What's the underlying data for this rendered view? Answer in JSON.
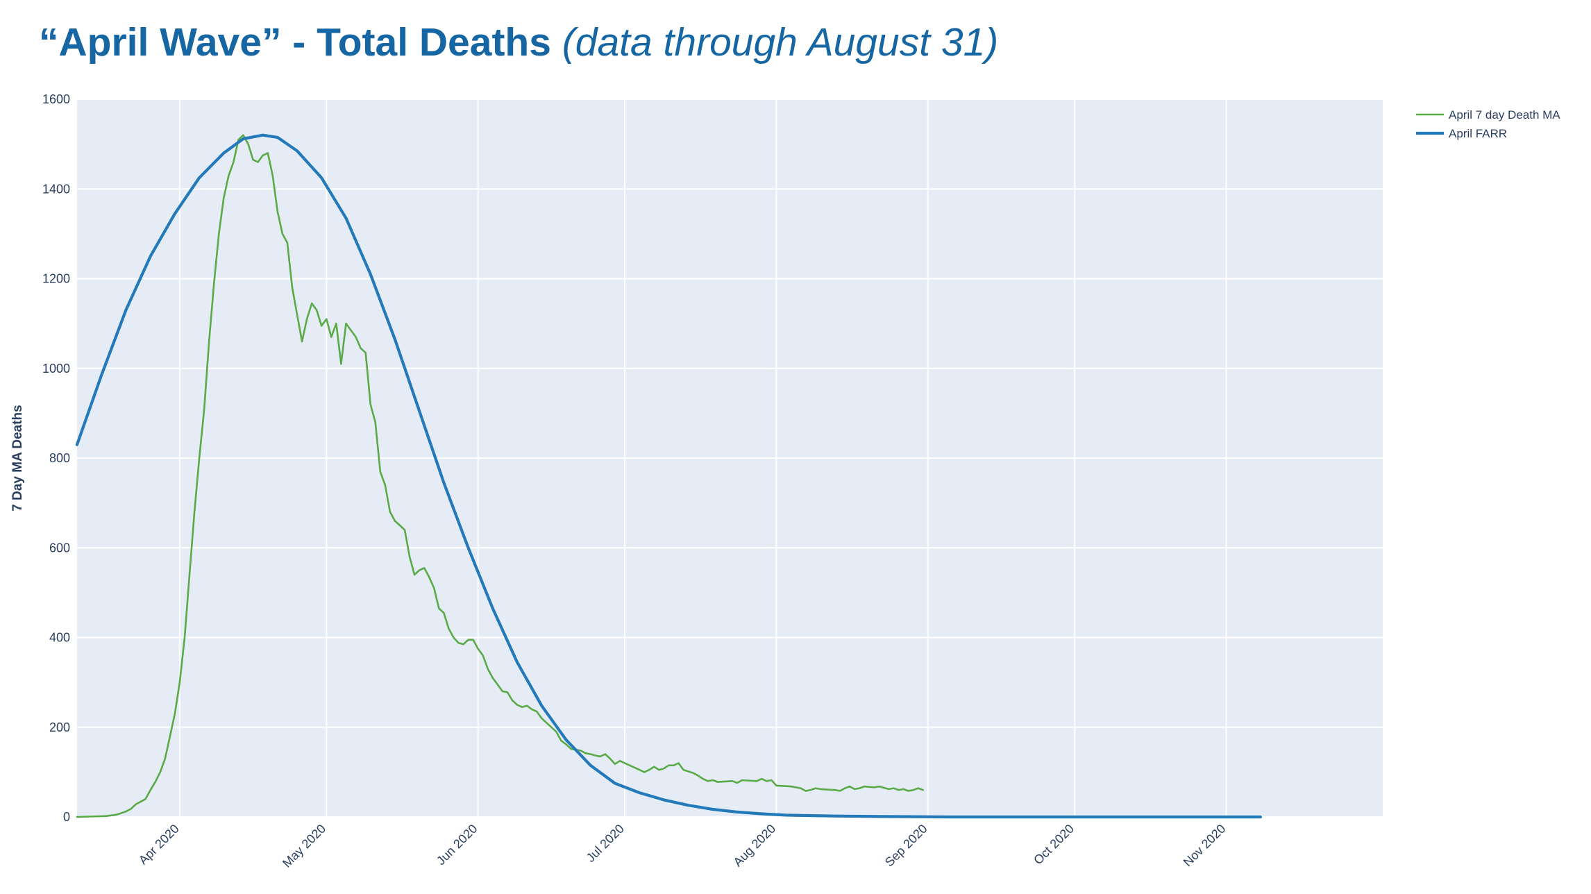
{
  "title": {
    "main": "“April Wave” - Total Deaths",
    "sub": "(data through August 31)"
  },
  "colors": {
    "background": "#ffffff",
    "plot_background": "#e5ecf6",
    "grid": "#ffffff",
    "title": "#1566a3",
    "ma_line": "#5aaa48",
    "farr_line": "#2479b9",
    "text": "#2a3f5f"
  },
  "chart_data": {
    "type": "line",
    "title": "“April Wave” - Total Deaths (data through August 31)",
    "xlabel": "",
    "ylabel": "7 Day MA Deaths",
    "xlim": [
      "2020-03-11",
      "2020-12-03"
    ],
    "ylim": [
      0,
      1600
    ],
    "y_ticks": [
      0,
      200,
      400,
      600,
      800,
      1000,
      1200,
      1400,
      1600
    ],
    "x_ticks": [
      {
        "date": "2020-04-01",
        "label": "Apr 2020"
      },
      {
        "date": "2020-05-01",
        "label": "May 2020"
      },
      {
        "date": "2020-06-01",
        "label": "Jun 2020"
      },
      {
        "date": "2020-07-01",
        "label": "Jul 2020"
      },
      {
        "date": "2020-08-01",
        "label": "Aug 2020"
      },
      {
        "date": "2020-09-01",
        "label": "Sep 2020"
      },
      {
        "date": "2020-10-01",
        "label": "Oct 2020"
      },
      {
        "date": "2020-11-01",
        "label": "Nov 2020"
      }
    ],
    "grid": true,
    "legend_position": "top-right",
    "series": [
      {
        "name": "April 7 day Death MA",
        "color": "#5aaa48",
        "points": [
          [
            "2020-03-11",
            0
          ],
          [
            "2020-03-17",
            2
          ],
          [
            "2020-03-19",
            5
          ],
          [
            "2020-03-21",
            12
          ],
          [
            "2020-03-22",
            18
          ],
          [
            "2020-03-23",
            28
          ],
          [
            "2020-03-25",
            40
          ],
          [
            "2020-03-26",
            60
          ],
          [
            "2020-03-27",
            78
          ],
          [
            "2020-03-28",
            100
          ],
          [
            "2020-03-29",
            130
          ],
          [
            "2020-03-30",
            180
          ],
          [
            "2020-03-31",
            230
          ],
          [
            "2020-04-01",
            300
          ],
          [
            "2020-04-02",
            400
          ],
          [
            "2020-04-03",
            540
          ],
          [
            "2020-04-04",
            680
          ],
          [
            "2020-04-05",
            800
          ],
          [
            "2020-04-06",
            910
          ],
          [
            "2020-04-07",
            1060
          ],
          [
            "2020-04-08",
            1190
          ],
          [
            "2020-04-09",
            1300
          ],
          [
            "2020-04-10",
            1380
          ],
          [
            "2020-04-11",
            1430
          ],
          [
            "2020-04-12",
            1460
          ],
          [
            "2020-04-13",
            1510
          ],
          [
            "2020-04-14",
            1520
          ],
          [
            "2020-04-15",
            1500
          ],
          [
            "2020-04-16",
            1465
          ],
          [
            "2020-04-17",
            1460
          ],
          [
            "2020-04-18",
            1475
          ],
          [
            "2020-04-19",
            1480
          ],
          [
            "2020-04-20",
            1430
          ],
          [
            "2020-04-21",
            1350
          ],
          [
            "2020-04-22",
            1300
          ],
          [
            "2020-04-23",
            1280
          ],
          [
            "2020-04-24",
            1180
          ],
          [
            "2020-04-25",
            1120
          ],
          [
            "2020-04-26",
            1060
          ],
          [
            "2020-04-27",
            1110
          ],
          [
            "2020-04-28",
            1145
          ],
          [
            "2020-04-29",
            1130
          ],
          [
            "2020-04-30",
            1095
          ],
          [
            "2020-05-01",
            1110
          ],
          [
            "2020-05-02",
            1070
          ],
          [
            "2020-05-03",
            1100
          ],
          [
            "2020-05-04",
            1010
          ],
          [
            "2020-05-05",
            1100
          ],
          [
            "2020-05-06",
            1085
          ],
          [
            "2020-05-07",
            1070
          ],
          [
            "2020-05-08",
            1045
          ],
          [
            "2020-05-09",
            1035
          ],
          [
            "2020-05-10",
            920
          ],
          [
            "2020-05-11",
            880
          ],
          [
            "2020-05-12",
            770
          ],
          [
            "2020-05-13",
            740
          ],
          [
            "2020-05-14",
            680
          ],
          [
            "2020-05-15",
            660
          ],
          [
            "2020-05-16",
            650
          ],
          [
            "2020-05-17",
            640
          ],
          [
            "2020-05-18",
            580
          ],
          [
            "2020-05-19",
            540
          ],
          [
            "2020-05-20",
            550
          ],
          [
            "2020-05-21",
            555
          ],
          [
            "2020-05-22",
            535
          ],
          [
            "2020-05-23",
            510
          ],
          [
            "2020-05-24",
            465
          ],
          [
            "2020-05-25",
            455
          ],
          [
            "2020-05-26",
            420
          ],
          [
            "2020-05-27",
            400
          ],
          [
            "2020-05-28",
            388
          ],
          [
            "2020-05-29",
            385
          ],
          [
            "2020-05-30",
            395
          ],
          [
            "2020-05-31",
            395
          ],
          [
            "2020-06-01",
            375
          ],
          [
            "2020-06-02",
            360
          ],
          [
            "2020-06-03",
            330
          ],
          [
            "2020-06-04",
            310
          ],
          [
            "2020-06-05",
            295
          ],
          [
            "2020-06-06",
            280
          ],
          [
            "2020-06-07",
            278
          ],
          [
            "2020-06-08",
            260
          ],
          [
            "2020-06-09",
            250
          ],
          [
            "2020-06-10",
            245
          ],
          [
            "2020-06-11",
            248
          ],
          [
            "2020-06-12",
            240
          ],
          [
            "2020-06-13",
            235
          ],
          [
            "2020-06-14",
            220
          ],
          [
            "2020-06-15",
            210
          ],
          [
            "2020-06-16",
            200
          ],
          [
            "2020-06-17",
            190
          ],
          [
            "2020-06-18",
            170
          ],
          [
            "2020-06-19",
            162
          ],
          [
            "2020-06-20",
            152
          ],
          [
            "2020-06-21",
            150
          ],
          [
            "2020-06-22",
            148
          ],
          [
            "2020-06-23",
            142
          ],
          [
            "2020-06-24",
            140
          ],
          [
            "2020-06-25",
            137
          ],
          [
            "2020-06-26",
            135
          ],
          [
            "2020-06-27",
            140
          ],
          [
            "2020-06-28",
            130
          ],
          [
            "2020-06-29",
            118
          ],
          [
            "2020-06-30",
            125
          ],
          [
            "2020-07-02",
            115
          ],
          [
            "2020-07-04",
            105
          ],
          [
            "2020-07-05",
            100
          ],
          [
            "2020-07-06",
            105
          ],
          [
            "2020-07-07",
            112
          ],
          [
            "2020-07-08",
            105
          ],
          [
            "2020-07-09",
            108
          ],
          [
            "2020-07-10",
            115
          ],
          [
            "2020-07-11",
            115
          ],
          [
            "2020-07-12",
            120
          ],
          [
            "2020-07-13",
            105
          ],
          [
            "2020-07-15",
            98
          ],
          [
            "2020-07-16",
            92
          ],
          [
            "2020-07-17",
            85
          ],
          [
            "2020-07-18",
            80
          ],
          [
            "2020-07-19",
            82
          ],
          [
            "2020-07-20",
            78
          ],
          [
            "2020-07-23",
            80
          ],
          [
            "2020-07-24",
            76
          ],
          [
            "2020-07-25",
            82
          ],
          [
            "2020-07-28",
            80
          ],
          [
            "2020-07-29",
            85
          ],
          [
            "2020-07-30",
            80
          ],
          [
            "2020-07-31",
            82
          ],
          [
            "2020-08-01",
            70
          ],
          [
            "2020-08-04",
            68
          ],
          [
            "2020-08-06",
            64
          ],
          [
            "2020-08-07",
            58
          ],
          [
            "2020-08-08",
            60
          ],
          [
            "2020-08-09",
            64
          ],
          [
            "2020-08-10",
            62
          ],
          [
            "2020-08-13",
            60
          ],
          [
            "2020-08-14",
            58
          ],
          [
            "2020-08-15",
            64
          ],
          [
            "2020-08-16",
            68
          ],
          [
            "2020-08-17",
            62
          ],
          [
            "2020-08-18",
            64
          ],
          [
            "2020-08-19",
            68
          ],
          [
            "2020-08-21",
            66
          ],
          [
            "2020-08-22",
            68
          ],
          [
            "2020-08-23",
            65
          ],
          [
            "2020-08-24",
            62
          ],
          [
            "2020-08-25",
            64
          ],
          [
            "2020-08-26",
            60
          ],
          [
            "2020-08-27",
            62
          ],
          [
            "2020-08-28",
            58
          ],
          [
            "2020-08-29",
            60
          ],
          [
            "2020-08-30",
            64
          ],
          [
            "2020-08-31",
            60
          ]
        ]
      },
      {
        "name": "April FARR",
        "color": "#2479b9",
        "points": [
          [
            "2020-03-11",
            830
          ],
          [
            "2020-03-16",
            985
          ],
          [
            "2020-03-21",
            1130
          ],
          [
            "2020-03-26",
            1250
          ],
          [
            "2020-03-31",
            1345
          ],
          [
            "2020-04-05",
            1425
          ],
          [
            "2020-04-10",
            1480
          ],
          [
            "2020-04-14",
            1512
          ],
          [
            "2020-04-18",
            1520
          ],
          [
            "2020-04-21",
            1515
          ],
          [
            "2020-04-25",
            1485
          ],
          [
            "2020-04-30",
            1425
          ],
          [
            "2020-05-05",
            1335
          ],
          [
            "2020-05-10",
            1210
          ],
          [
            "2020-05-15",
            1065
          ],
          [
            "2020-05-20",
            905
          ],
          [
            "2020-05-25",
            745
          ],
          [
            "2020-05-30",
            600
          ],
          [
            "2020-06-04",
            465
          ],
          [
            "2020-06-09",
            345
          ],
          [
            "2020-06-14",
            248
          ],
          [
            "2020-06-19",
            172
          ],
          [
            "2020-06-24",
            115
          ],
          [
            "2020-06-29",
            75
          ],
          [
            "2020-07-04",
            54
          ],
          [
            "2020-07-09",
            38
          ],
          [
            "2020-07-14",
            26
          ],
          [
            "2020-07-19",
            17
          ],
          [
            "2020-07-24",
            11
          ],
          [
            "2020-07-29",
            7
          ],
          [
            "2020-08-03",
            4
          ],
          [
            "2020-08-13",
            2
          ],
          [
            "2020-08-23",
            1
          ],
          [
            "2020-09-06",
            0
          ],
          [
            "2020-10-01",
            0
          ],
          [
            "2020-11-01",
            0
          ],
          [
            "2020-11-08",
            0
          ]
        ]
      }
    ]
  }
}
